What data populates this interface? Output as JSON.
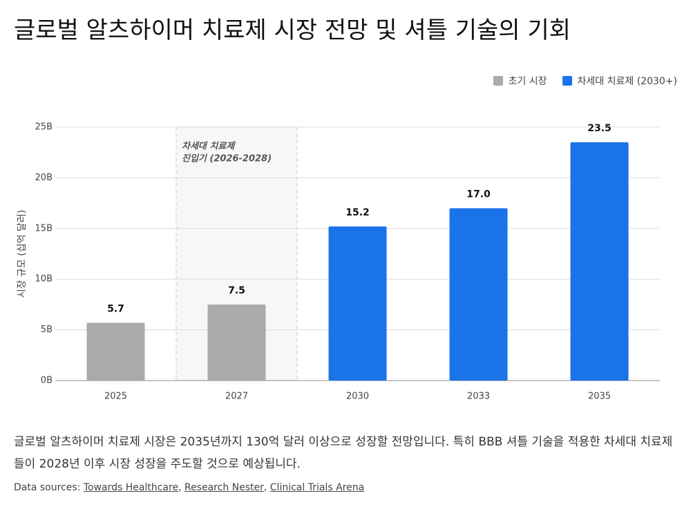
{
  "chart_data": {
    "type": "bar",
    "title": "글로벌 알츠하이머 치료제 시장 전망 및 셔틀 기술의 기회",
    "y_label": "시장 규모 (십억 달러)",
    "categories": [
      "2025",
      "2027",
      "2030",
      "2033",
      "2035"
    ],
    "series": [
      {
        "name": "초기 시장",
        "color": "#aaaaaa",
        "values": [
          5.7,
          7.5,
          null,
          null,
          null
        ],
        "value_labels": [
          "5.7",
          "7.5",
          null,
          null,
          null
        ]
      },
      {
        "name": "차세대 치료제 (2030+)",
        "color": "#1a73e8",
        "values": [
          null,
          null,
          15.2,
          17.0,
          23.5
        ],
        "value_labels": [
          null,
          null,
          "15.2",
          "17.0",
          "23.5"
        ]
      }
    ],
    "ylim": [
      0,
      25
    ],
    "yticks": [
      {
        "value": 0,
        "label": "0B"
      },
      {
        "value": 5,
        "label": "5B"
      },
      {
        "value": 10,
        "label": "10B"
      },
      {
        "value": 15,
        "label": "15B"
      },
      {
        "value": 20,
        "label": "20B"
      },
      {
        "value": 25,
        "label": "25B"
      }
    ],
    "grid": true,
    "legend": "top-right",
    "annotation": [
      "차세대 치료제",
      "진입기 (2026-2028)"
    ],
    "description": "글로벌 알츠하이머 치료제 시장은 2035년까지 130억 달러 이상으로 성장할 전망입니다. 특히 BBB 셔틀 기술을 적용한 차세대 치료제들이 2028년 이후 시장 성장을 주도할 것으로 예상됩니다.",
    "sources_label": "Data sources:",
    "sources": [
      "Towards Healthcare",
      "Research Nester",
      "Clinical Trials Arena"
    ]
  }
}
